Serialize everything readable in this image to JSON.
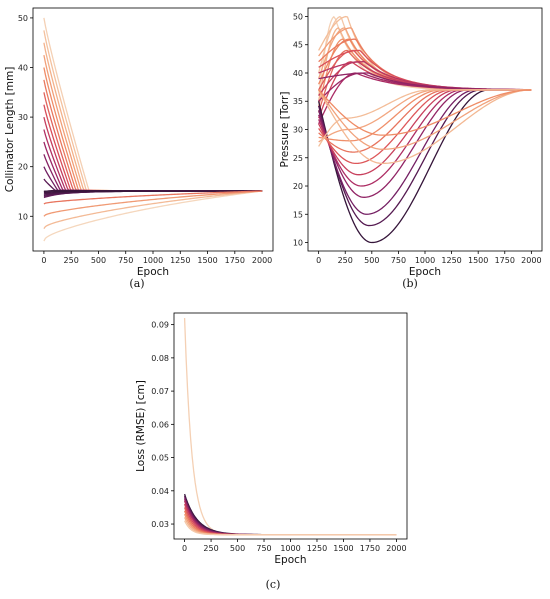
{
  "chart_data": [
    {
      "id": "a",
      "type": "line",
      "caption": "(a)",
      "xlabel": "Epoch",
      "ylabel": "Collimator Length [mm]",
      "xlim": [
        -100,
        2100
      ],
      "ylim": [
        3,
        52
      ],
      "xticks": [
        0,
        250,
        500,
        750,
        1000,
        1250,
        1500,
        1750,
        2000
      ],
      "yticks": [
        10,
        20,
        30,
        40,
        50
      ],
      "grid": false,
      "legend": "none",
      "colormap": [
        "#f5dcc4",
        "#f3b48d",
        "#ee8560",
        "#d94d59",
        "#a52766",
        "#6c1e62",
        "#2e1434"
      ],
      "series_groups": {
        "descending_starts": [
          50,
          47.5,
          45,
          42.5,
          40,
          37.5,
          35,
          32.5,
          30,
          27.5,
          25,
          22.5,
          20,
          17.5,
          15
        ],
        "descending_converge": 15.2,
        "low_starts": [
          5,
          7.5,
          10,
          12.5
        ],
        "final_value": 15.1,
        "final_epoch": 2000
      }
    },
    {
      "id": "b",
      "type": "line",
      "caption": "(b)",
      "xlabel": "Epoch",
      "ylabel": "Pressure [Torr]",
      "xlim": [
        -100,
        2100
      ],
      "ylim": [
        8.5,
        51.5
      ],
      "xticks": [
        0,
        250,
        500,
        750,
        1000,
        1250,
        1500,
        1750,
        2000
      ],
      "yticks": [
        10,
        15,
        20,
        25,
        30,
        35,
        40,
        45,
        50
      ],
      "grid": false,
      "legend": "none",
      "colormap": [
        "#f5dcc4",
        "#f3b48d",
        "#ee8560",
        "#d94d59",
        "#a52766",
        "#6c1e62",
        "#2e1434"
      ],
      "series_groups": {
        "converge_value": 37,
        "high_peaks": [
          50,
          48,
          46,
          44,
          42,
          40
        ],
        "dip_minima": [
          10,
          13,
          15,
          18,
          20,
          22,
          24,
          26,
          28,
          30,
          32
        ]
      }
    },
    {
      "id": "c",
      "type": "line",
      "caption": "(c)",
      "xlabel": "Epoch",
      "ylabel": "Loss (RMSE) [cm]",
      "xlim": [
        -100,
        2100
      ],
      "ylim": [
        0.0255,
        0.0935
      ],
      "xticks": [
        0,
        250,
        500,
        750,
        1000,
        1250,
        1500,
        1750,
        2000
      ],
      "yticks": [
        0.03,
        0.04,
        0.05,
        0.06,
        0.07,
        0.08,
        0.09
      ],
      "ytick_labels": [
        "0.03",
        "0.04",
        "0.05",
        "0.06",
        "0.07",
        "0.08",
        "0.09"
      ],
      "grid": false,
      "legend": "none",
      "colormap": [
        "#f5dcc4",
        "#f3b48d",
        "#ee8560",
        "#d94d59",
        "#a52766",
        "#6c1e62",
        "#2e1434"
      ],
      "series_groups": {
        "peak_start": 0.092,
        "starts": [
          0.039,
          0.0385,
          0.038,
          0.0375,
          0.037,
          0.036,
          0.035,
          0.034,
          0.033,
          0.032,
          0.031
        ],
        "final_value": 0.0268
      }
    }
  ]
}
